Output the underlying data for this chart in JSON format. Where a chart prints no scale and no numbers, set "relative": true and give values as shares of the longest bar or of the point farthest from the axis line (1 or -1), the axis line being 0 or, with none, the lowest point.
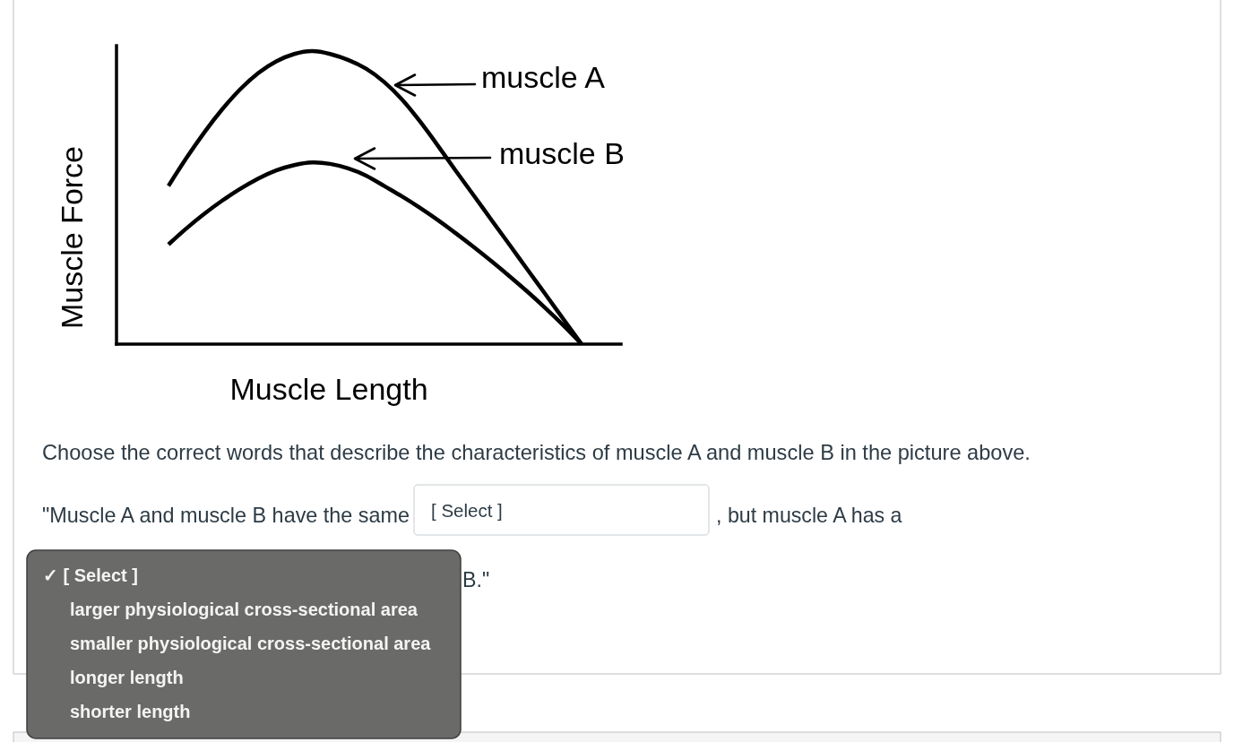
{
  "chart_data": {
    "type": "line",
    "relative": true,
    "xlabel": "Muscle Length",
    "ylabel": "Muscle Force",
    "legend": "top right",
    "categories": [
      null,
      null,
      null,
      null,
      null,
      null,
      null,
      null,
      null,
      null,
      null,
      null,
      null,
      null,
      null,
      null,
      null,
      null,
      null,
      null,
      null,
      null,
      null,
      null
    ],
    "series": [
      {
        "name": "muscle A",
        "color": "#000000",
        "values": [
          0.54,
          0.635,
          0.723,
          0.802,
          0.87,
          0.925,
          0.965,
          0.99,
          1.0,
          0.99,
          0.97,
          0.94,
          0.895,
          0.835,
          0.76,
          0.677,
          0.591,
          0.507,
          0.422,
          0.338,
          0.253,
          0.169,
          0.084,
          0
        ]
      },
      {
        "name": "muscle B",
        "color": "#000000",
        "values": [
          0.34,
          0.395,
          0.445,
          0.49,
          0.53,
          0.565,
          0.593,
          0.611,
          0.62,
          0.615,
          0.6,
          0.575,
          0.54,
          0.504,
          0.465,
          0.423,
          0.378,
          0.331,
          0.282,
          0.231,
          0.178,
          0.122,
          0.063,
          0
        ]
      }
    ],
    "annotations": [
      "Choose the correct words that describe the characteristics of muscle A and muscle B in the picture above.",
      "\"Muscle A and muscle B have the same",
      "[ Select ]",
      ", but muscle A has a",
      "B.\"",
      "✓ [ Select ]",
      "larger physiological cross-sectional area",
      "smaller physiological cross-sectional area",
      "longer length",
      "shorter length"
    ]
  }
}
